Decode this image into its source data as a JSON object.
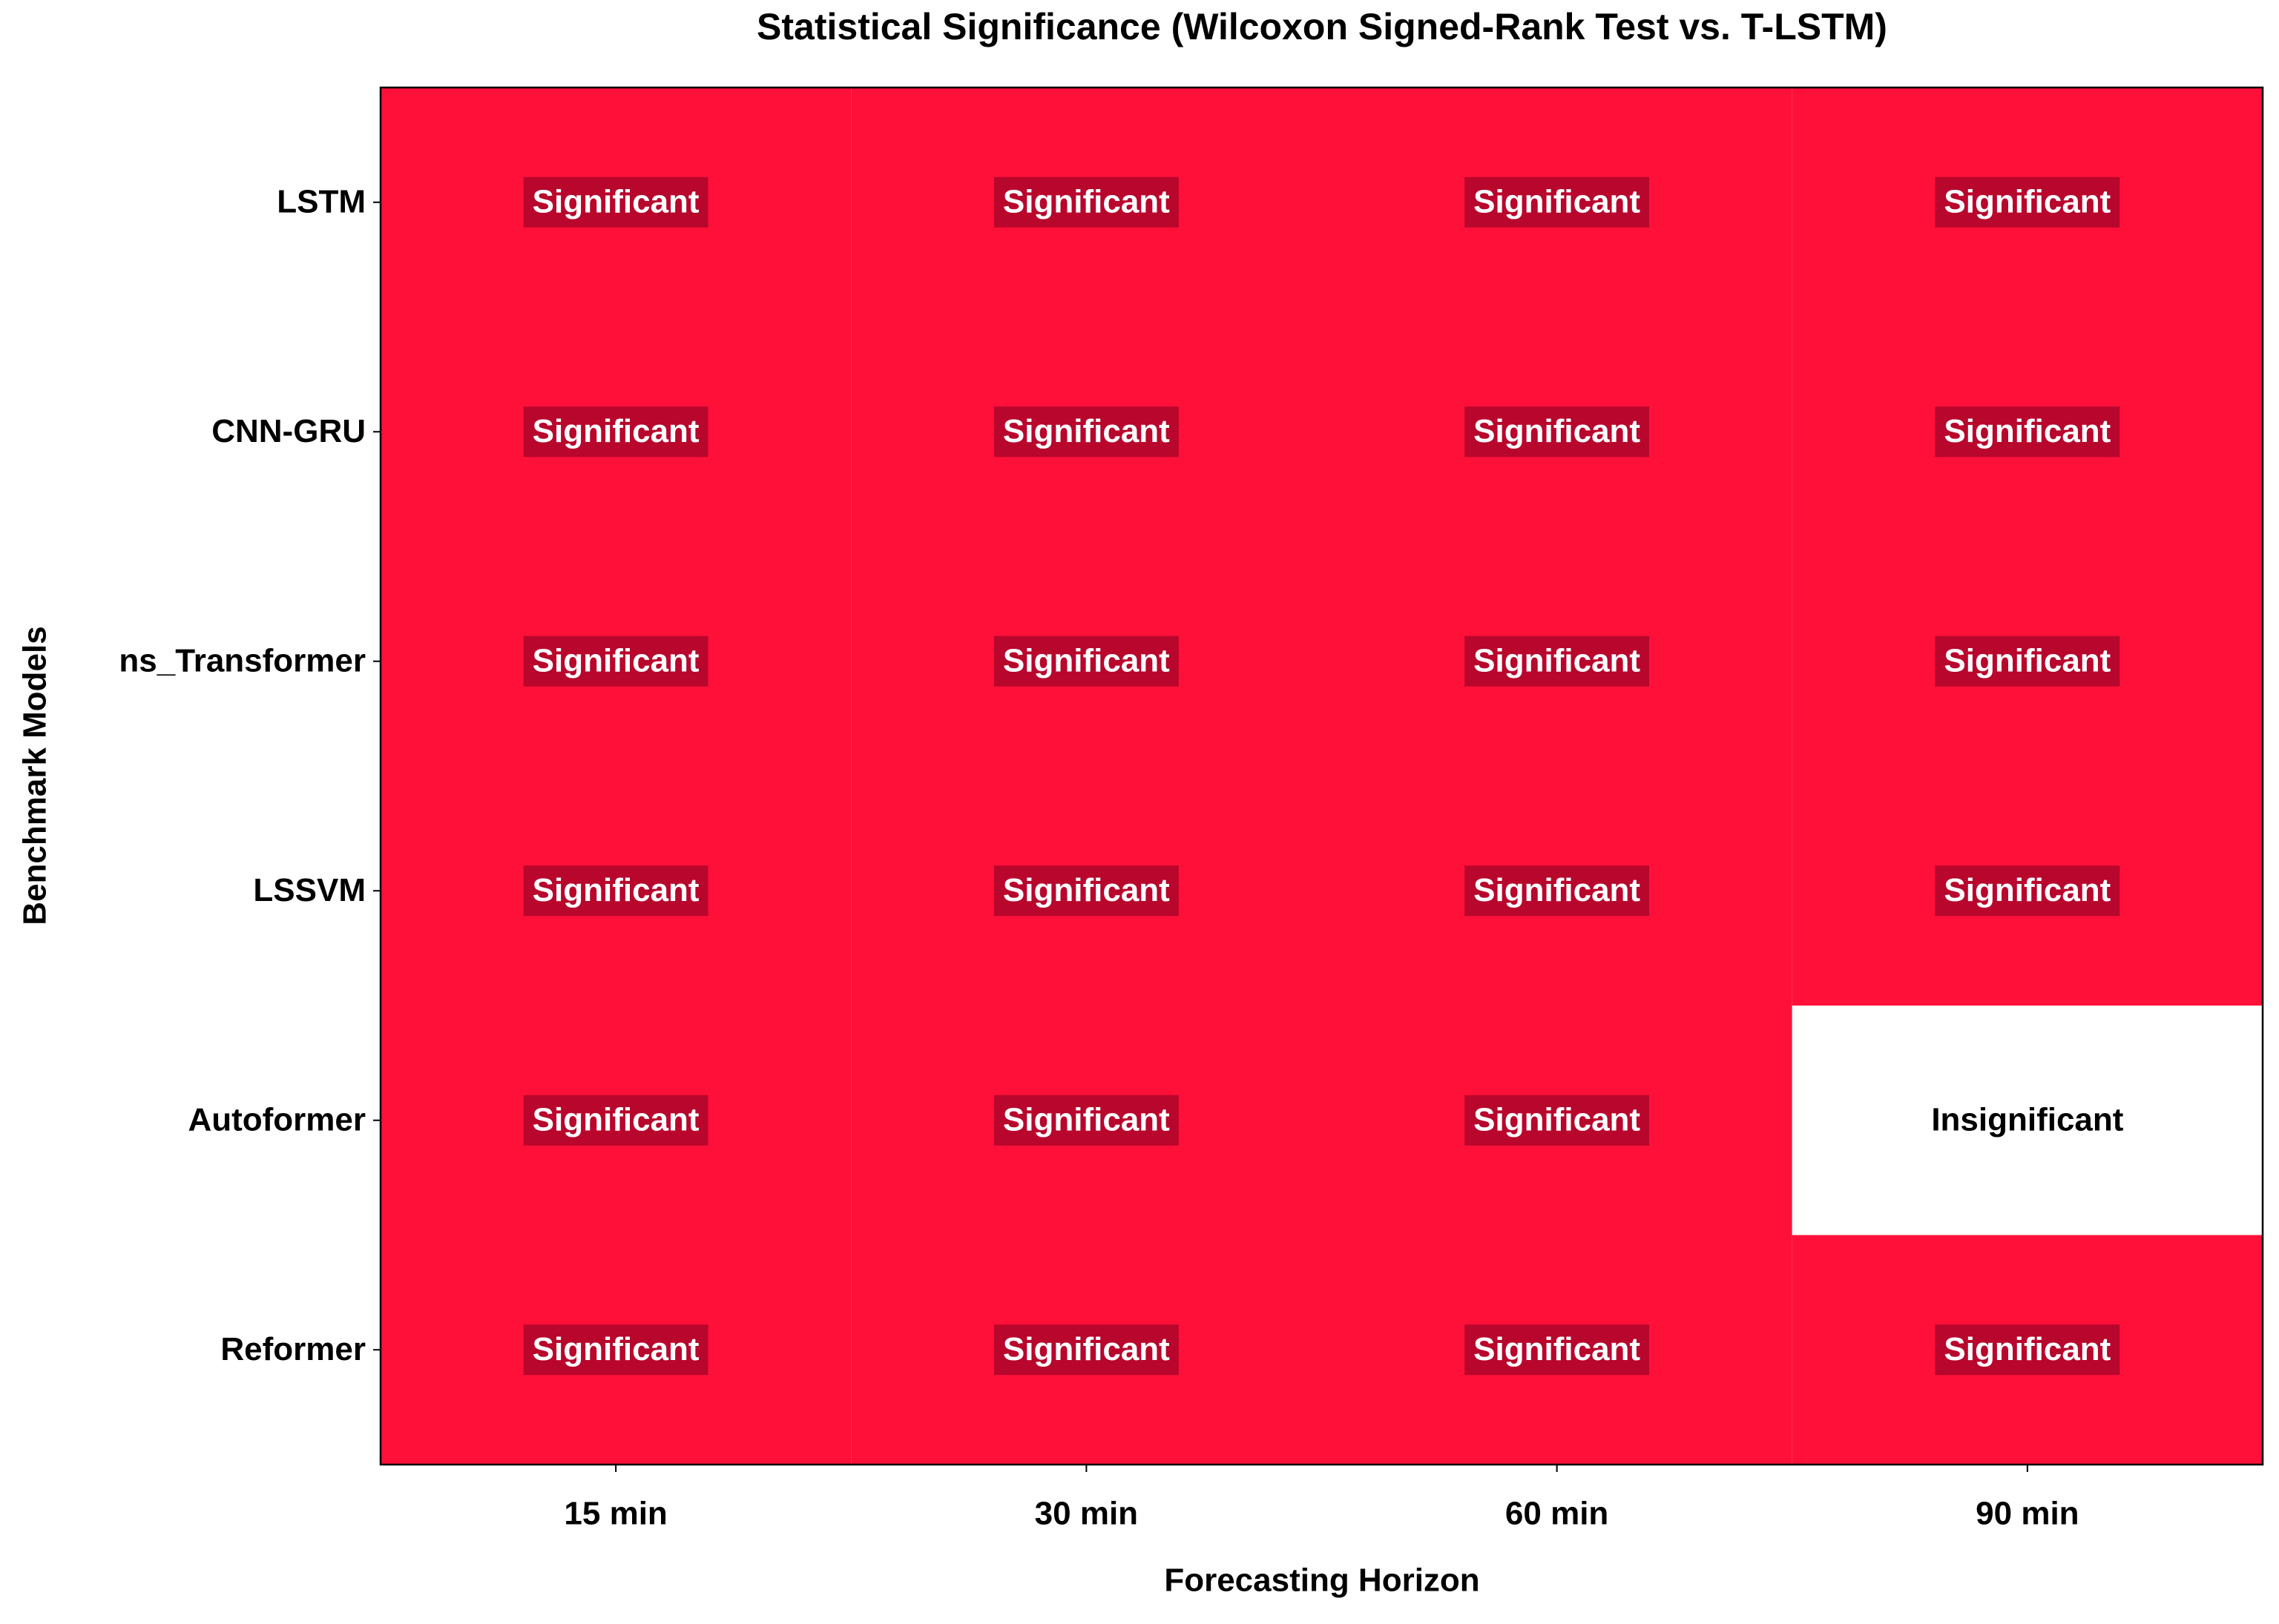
{
  "chart_data": {
    "type": "heatmap",
    "title": "Statistical Significance (Wilcoxon Signed-Rank Test vs. T-LSTM)",
    "x_label": "Forecasting Horizon",
    "y_label": "Benchmark Models",
    "x_categories": [
      "15 min",
      "30 min",
      "60 min",
      "90 min"
    ],
    "y_categories": [
      "LSTM",
      "CNN-GRU",
      "ns_Transformer",
      "LSSVM",
      "Autoformer",
      "Reformer"
    ],
    "values": [
      [
        "Significant",
        "Significant",
        "Significant",
        "Significant"
      ],
      [
        "Significant",
        "Significant",
        "Significant",
        "Significant"
      ],
      [
        "Significant",
        "Significant",
        "Significant",
        "Significant"
      ],
      [
        "Significant",
        "Significant",
        "Significant",
        "Significant"
      ],
      [
        "Significant",
        "Significant",
        "Significant",
        "Insignificant"
      ],
      [
        "Significant",
        "Significant",
        "Significant",
        "Significant"
      ]
    ],
    "styles": {
      "Significant": {
        "fill": "#ff1039",
        "label_box": "#b8062c",
        "label_color": "#ffffff"
      },
      "Insignificant": {
        "fill": "#ffffff",
        "label_color": "#000000"
      }
    }
  }
}
